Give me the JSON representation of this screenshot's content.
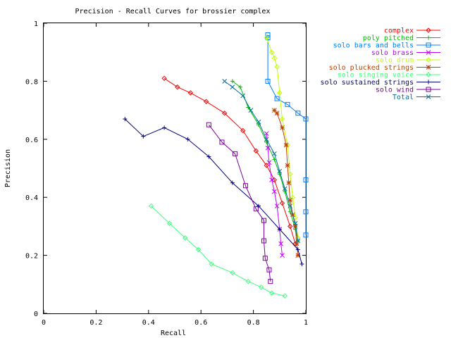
{
  "chart_data": {
    "type": "line",
    "title": "Precision - Recall Curves for brossier complex",
    "xlabel": "Recall",
    "ylabel": "Precision",
    "xlim": [
      0,
      1
    ],
    "ylim": [
      0,
      1
    ],
    "xticks": [
      "0",
      "0.2",
      "0.4",
      "0.6",
      "0.8",
      "1"
    ],
    "yticks": [
      "0",
      "0.2",
      "0.4",
      "0.6",
      "0.8",
      "1"
    ],
    "grid": false,
    "legend_position": "top-right",
    "series": [
      {
        "name": "complex",
        "color": "#ff0000",
        "marker": "diamond",
        "points": [
          [
            0.46,
            0.81
          ],
          [
            0.51,
            0.78
          ],
          [
            0.56,
            0.76
          ],
          [
            0.62,
            0.73
          ],
          [
            0.69,
            0.69
          ],
          [
            0.76,
            0.63
          ],
          [
            0.81,
            0.56
          ],
          [
            0.85,
            0.51
          ],
          [
            0.88,
            0.46
          ],
          [
            0.91,
            0.38
          ],
          [
            0.94,
            0.3
          ],
          [
            0.96,
            0.24
          ]
        ]
      },
      {
        "name": "poly pitched",
        "color": "#00c000",
        "marker": "plus",
        "points": [
          [
            0.72,
            0.8
          ],
          [
            0.75,
            0.78
          ],
          [
            0.78,
            0.71
          ],
          [
            0.82,
            0.65
          ],
          [
            0.85,
            0.59
          ],
          [
            0.88,
            0.53
          ],
          [
            0.9,
            0.48
          ],
          [
            0.92,
            0.42
          ],
          [
            0.94,
            0.35
          ],
          [
            0.96,
            0.29
          ],
          [
            0.97,
            0.25
          ]
        ]
      },
      {
        "name": "solo bars and bells",
        "color": "#0080ff",
        "marker": "square",
        "points": [
          [
            0.855,
            0.96
          ],
          [
            0.855,
            0.95
          ],
          [
            0.855,
            0.8
          ],
          [
            0.89,
            0.74
          ],
          [
            0.93,
            0.72
          ],
          [
            0.97,
            0.69
          ],
          [
            1.0,
            0.67
          ],
          [
            1.0,
            0.46
          ],
          [
            1.0,
            0.35
          ],
          [
            1.0,
            0.27
          ]
        ]
      },
      {
        "name": "solo brass",
        "color": "#c000ff",
        "marker": "cross",
        "points": [
          [
            0.85,
            0.62
          ],
          [
            0.855,
            0.57
          ],
          [
            0.86,
            0.52
          ],
          [
            0.87,
            0.46
          ],
          [
            0.88,
            0.42
          ],
          [
            0.89,
            0.37
          ],
          [
            0.9,
            0.29
          ],
          [
            0.905,
            0.24
          ],
          [
            0.91,
            0.2
          ]
        ]
      },
      {
        "name": "solo drum",
        "color": "#c0ff00",
        "marker": "diamond",
        "points": [
          [
            0.85,
            0.95
          ],
          [
            0.87,
            0.9
          ],
          [
            0.88,
            0.88
          ],
          [
            0.89,
            0.85
          ],
          [
            0.9,
            0.76
          ],
          [
            0.91,
            0.67
          ],
          [
            0.93,
            0.58
          ],
          [
            0.94,
            0.48
          ],
          [
            0.95,
            0.4
          ],
          [
            0.96,
            0.33
          ],
          [
            0.97,
            0.26
          ]
        ]
      },
      {
        "name": "solo plucked strings",
        "color": "#c04000",
        "marker": "star",
        "points": [
          [
            0.88,
            0.7
          ],
          [
            0.89,
            0.69
          ],
          [
            0.91,
            0.64
          ],
          [
            0.925,
            0.58
          ],
          [
            0.93,
            0.51
          ],
          [
            0.935,
            0.45
          ],
          [
            0.94,
            0.39
          ],
          [
            0.95,
            0.34
          ],
          [
            0.96,
            0.3
          ],
          [
            0.965,
            0.24
          ],
          [
            0.97,
            0.2
          ]
        ]
      },
      {
        "name": "solo singing voice",
        "color": "#40ff80",
        "marker": "diamond",
        "points": [
          [
            0.41,
            0.37
          ],
          [
            0.48,
            0.31
          ],
          [
            0.54,
            0.26
          ],
          [
            0.59,
            0.22
          ],
          [
            0.64,
            0.17
          ],
          [
            0.72,
            0.14
          ],
          [
            0.78,
            0.11
          ],
          [
            0.83,
            0.09
          ],
          [
            0.87,
            0.07
          ],
          [
            0.92,
            0.06
          ]
        ]
      },
      {
        "name": "solo sustained strings",
        "color": "#000080",
        "marker": "plus",
        "points": [
          [
            0.31,
            0.67
          ],
          [
            0.38,
            0.61
          ],
          [
            0.46,
            0.64
          ],
          [
            0.55,
            0.6
          ],
          [
            0.63,
            0.54
          ],
          [
            0.72,
            0.45
          ],
          [
            0.82,
            0.37
          ],
          [
            0.9,
            0.29
          ],
          [
            0.97,
            0.22
          ],
          [
            0.985,
            0.17
          ]
        ]
      },
      {
        "name": "solo wind",
        "color": "#8000a0",
        "marker": "square",
        "points": [
          [
            0.63,
            0.65
          ],
          [
            0.68,
            0.59
          ],
          [
            0.73,
            0.55
          ],
          [
            0.77,
            0.44
          ],
          [
            0.81,
            0.36
          ],
          [
            0.84,
            0.32
          ],
          [
            0.84,
            0.25
          ],
          [
            0.845,
            0.19
          ],
          [
            0.86,
            0.15
          ],
          [
            0.865,
            0.11
          ]
        ]
      },
      {
        "name": "Total",
        "color": "#0070a0",
        "marker": "cross",
        "points": [
          [
            0.69,
            0.8
          ],
          [
            0.72,
            0.78
          ],
          [
            0.76,
            0.75
          ],
          [
            0.79,
            0.7
          ],
          [
            0.82,
            0.66
          ],
          [
            0.85,
            0.6
          ],
          [
            0.88,
            0.55
          ],
          [
            0.9,
            0.49
          ],
          [
            0.92,
            0.43
          ],
          [
            0.94,
            0.37
          ],
          [
            0.96,
            0.31
          ],
          [
            0.97,
            0.25
          ]
        ]
      }
    ]
  }
}
